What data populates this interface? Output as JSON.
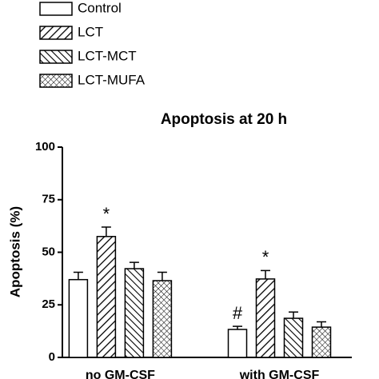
{
  "chart_data": {
    "type": "bar",
    "title": "Apoptosis at 20 h",
    "y_label": "Apoptosis (%)",
    "categories": [
      "no GM-CSF",
      "with GM-CSF"
    ],
    "series": [
      {
        "name": "Control",
        "color": "#000000",
        "pattern": "none",
        "values": [
          37,
          13.3
        ],
        "errors": [
          3.5,
          1.5
        ],
        "annotations": [
          null,
          "#"
        ]
      },
      {
        "name": "LCT",
        "color": "#000000",
        "pattern": "forward",
        "values": [
          57.5,
          37.3
        ],
        "errors": [
          4.5,
          4
        ],
        "annotations": [
          "*",
          "*"
        ]
      },
      {
        "name": "LCT-MCT",
        "color": "#000000",
        "pattern": "backward",
        "values": [
          42.2,
          18.6
        ],
        "errors": [
          3,
          3
        ]
      },
      {
        "name": "LCT-MUFA",
        "color": "#000000",
        "pattern": "cross",
        "values": [
          36.5,
          14.4
        ],
        "errors": [
          4,
          2.5
        ]
      }
    ],
    "ylim": [
      0,
      100
    ],
    "yticks": [
      0,
      25,
      50,
      75,
      100
    ],
    "grid": false,
    "legend": "top-left"
  }
}
